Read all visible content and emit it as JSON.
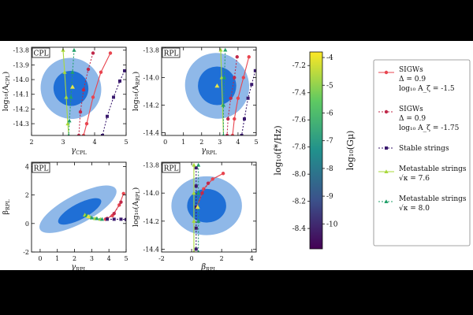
{
  "chart_data": [
    {
      "type": "scatter",
      "id": "cpl",
      "panel_label": "CPL",
      "xlabel": "γ",
      "xlabel_sub": "CPL",
      "ylabel": "log₁₀(A",
      "ylabel_sub": "CPL",
      "ylabel_end": ")",
      "xlim": [
        2,
        5
      ],
      "ylim": [
        -14.38,
        -13.78
      ],
      "xticks": [
        "2",
        "3",
        "4",
        "5"
      ],
      "yticks": [
        "-13.8",
        "-13.9",
        "-14.0",
        "-14.1",
        "-14.2",
        "-14.3"
      ],
      "contour_2sigma": {
        "center": [
          3.25,
          -14.06
        ],
        "radii": [
          0.95,
          0.21
        ],
        "angle_deg": 38
      },
      "contour_1sigma": {
        "center": [
          3.25,
          -14.06
        ],
        "radii": [
          0.55,
          0.12
        ],
        "angle_deg": 38
      },
      "marker": [
        3.3,
        -14.05
      ],
      "series": [
        {
          "kind": "sigw1",
          "points": [
            [
              4.5,
              -13.82
            ],
            [
              4.2,
              -13.95
            ],
            [
              3.95,
              -14.12
            ],
            [
              3.75,
              -14.3
            ],
            [
              3.65,
              -14.38
            ]
          ]
        },
        {
          "kind": "sigw2",
          "points": [
            [
              3.95,
              -13.82
            ],
            [
              3.8,
              -13.93
            ],
            [
              3.65,
              -14.07
            ],
            [
              3.55,
              -14.22
            ],
            [
              3.5,
              -14.38
            ]
          ]
        },
        {
          "kind": "stable",
          "points": [
            [
              4.95,
              -13.94
            ],
            [
              4.8,
              -14.01
            ],
            [
              4.6,
              -14.12
            ],
            [
              4.4,
              -14.25
            ],
            [
              4.25,
              -14.38
            ]
          ]
        },
        {
          "kind": "meta1",
          "points": [
            [
              3.0,
              -13.8
            ],
            [
              3.05,
              -13.95
            ],
            [
              3.1,
              -14.12
            ],
            [
              3.15,
              -14.3
            ],
            [
              3.18,
              -14.38
            ]
          ]
        },
        {
          "kind": "meta2",
          "points": [
            [
              3.35,
              -13.8
            ],
            [
              3.3,
              -13.95
            ],
            [
              3.25,
              -14.12
            ],
            [
              3.2,
              -14.28
            ],
            [
              3.18,
              -14.38
            ]
          ]
        }
      ]
    },
    {
      "type": "scatter",
      "id": "rpl-top",
      "panel_label": "RPL",
      "xlabel": "γ",
      "xlabel_sub": "RPL",
      "ylabel": "log₁₀(A",
      "ylabel_sub": "RPL",
      "ylabel_end": ")",
      "xlim": [
        -0.2,
        5
      ],
      "ylim": [
        -14.42,
        -13.78
      ],
      "xticks": [
        "0",
        "1",
        "2",
        "3",
        "4",
        "5"
      ],
      "yticks": [
        "-13.8",
        "-14.0",
        "-14.2",
        "-14.4"
      ],
      "contour_2sigma": {
        "center": [
          2.85,
          -14.06
        ],
        "radii": [
          1.75,
          0.24
        ],
        "angle_deg": 25
      },
      "contour_1sigma": {
        "center": [
          2.85,
          -14.06
        ],
        "radii": [
          1.05,
          0.14
        ],
        "angle_deg": 25
      },
      "marker": [
        2.85,
        -14.06
      ],
      "series": [
        {
          "kind": "sigw1",
          "points": [
            [
              4.6,
              -13.85
            ],
            [
              4.3,
              -14.0
            ],
            [
              4.0,
              -14.15
            ],
            [
              3.8,
              -14.3
            ],
            [
              3.7,
              -14.42
            ]
          ]
        },
        {
          "kind": "sigw2",
          "points": [
            [
              3.95,
              -13.85
            ],
            [
              3.8,
              -14.0
            ],
            [
              3.6,
              -14.15
            ],
            [
              3.45,
              -14.3
            ],
            [
              3.4,
              -14.42
            ]
          ]
        },
        {
          "kind": "stable",
          "points": [
            [
              4.95,
              -13.95
            ],
            [
              4.75,
              -14.05
            ],
            [
              4.55,
              -14.15
            ],
            [
              4.35,
              -14.3
            ],
            [
              4.2,
              -14.42
            ]
          ]
        },
        {
          "kind": "meta1",
          "points": [
            [
              3.05,
              -13.8
            ],
            [
              3.1,
              -14.0
            ],
            [
              3.15,
              -14.2
            ],
            [
              3.2,
              -14.42
            ]
          ]
        },
        {
          "kind": "meta2",
          "points": [
            [
              3.3,
              -13.8
            ],
            [
              3.25,
              -14.0
            ],
            [
              3.2,
              -14.2
            ],
            [
              3.2,
              -14.42
            ]
          ]
        }
      ]
    },
    {
      "type": "scatter",
      "id": "rpl-bottom-left",
      "panel_label": "RPL",
      "xlabel": "γ",
      "xlabel_sub": "RPL",
      "ylabel": "β",
      "ylabel_sub": "RPL",
      "ylabel_end": "",
      "xlim": [
        -0.5,
        5
      ],
      "ylim": [
        -2,
        4.3
      ],
      "xticks": [
        "0",
        "1",
        "2",
        "3",
        "4",
        "5"
      ],
      "yticks": [
        "4",
        "2",
        "0",
        "-2"
      ],
      "contour_2sigma": {
        "center": [
          2.2,
          1.0
        ],
        "radii": [
          2.5,
          1.0
        ],
        "angle_deg": 28
      },
      "contour_1sigma": {
        "center": [
          2.3,
          0.85
        ],
        "radii": [
          1.4,
          0.55
        ],
        "angle_deg": 28
      },
      "marker": [
        2.8,
        0.5
      ],
      "series": [
        {
          "kind": "sigw1",
          "points": [
            [
              3.8,
              0.3
            ],
            [
              4.2,
              0.55
            ],
            [
              4.6,
              1.3
            ],
            [
              4.85,
              2.1
            ]
          ]
        },
        {
          "kind": "sigw2",
          "points": [
            [
              3.9,
              0.35
            ],
            [
              4.3,
              0.7
            ],
            [
              4.7,
              1.5
            ]
          ]
        },
        {
          "kind": "stable",
          "points": [
            [
              3.9,
              0.3
            ],
            [
              4.3,
              0.3
            ],
            [
              4.7,
              0.3
            ],
            [
              5.0,
              0.28
            ]
          ]
        },
        {
          "kind": "meta1",
          "points": [
            [
              2.6,
              0.6
            ],
            [
              2.9,
              0.45
            ],
            [
              3.2,
              0.35
            ],
            [
              3.5,
              0.3
            ]
          ]
        },
        {
          "kind": "meta2",
          "points": [
            [
              2.7,
              0.55
            ],
            [
              3.0,
              0.4
            ],
            [
              3.3,
              0.35
            ],
            [
              3.6,
              0.3
            ]
          ]
        }
      ]
    },
    {
      "type": "scatter",
      "id": "rpl-bottom-right",
      "panel_label": "RPL",
      "xlabel": "β",
      "xlabel_sub": "RPL",
      "ylabel": "log₁₀(A",
      "ylabel_sub": "RPL",
      "ylabel_end": ")",
      "xlim": [
        -2,
        4.3
      ],
      "ylim": [
        -14.42,
        -13.78
      ],
      "xticks": [
        "-2",
        "0",
        "2",
        "4"
      ],
      "yticks": [
        "-13.8",
        "-14.0",
        "-14.2",
        "-14.4"
      ],
      "contour_2sigma": {
        "center": [
          1.0,
          -14.09
        ],
        "radii": [
          2.35,
          0.21
        ],
        "angle_deg": 0
      },
      "contour_1sigma": {
        "center": [
          1.0,
          -14.09
        ],
        "radii": [
          1.3,
          0.12
        ],
        "angle_deg": 0
      },
      "marker": [
        0.4,
        -14.1
      ],
      "series": [
        {
          "kind": "sigw1",
          "points": [
            [
              0.35,
              -14.1
            ],
            [
              0.8,
              -13.97
            ],
            [
              1.4,
              -13.9
            ],
            [
              2.1,
              -13.86
            ]
          ]
        },
        {
          "kind": "sigw2",
          "points": [
            [
              0.35,
              -14.1
            ],
            [
              0.7,
              -14.0
            ],
            [
              1.1,
              -13.93
            ]
          ]
        },
        {
          "kind": "stable",
          "points": [
            [
              0.3,
              -13.82
            ],
            [
              0.3,
              -13.95
            ],
            [
              0.3,
              -14.1
            ],
            [
              0.3,
              -14.25
            ],
            [
              0.3,
              -14.4
            ]
          ]
        },
        {
          "kind": "meta1",
          "points": [
            [
              0.15,
              -13.8
            ],
            [
              0.15,
              -14.0
            ],
            [
              0.15,
              -14.2
            ],
            [
              0.15,
              -14.42
            ]
          ]
        },
        {
          "kind": "meta2",
          "points": [
            [
              0.45,
              -13.8
            ],
            [
              0.45,
              -14.0
            ],
            [
              0.45,
              -14.2
            ],
            [
              0.45,
              -14.42
            ]
          ]
        }
      ]
    }
  ],
  "colorbar": {
    "left_label": "log₁₀(f*/Hz)",
    "right_label": "log₁₀(Gμ)",
    "left_ticks": [
      "-7.2",
      "-7.4",
      "-7.6",
      "-7.8",
      "-8.0",
      "-8.2",
      "-8.4"
    ],
    "left_range": [
      -8.55,
      -7.1
    ],
    "right_ticks": [
      "-4",
      "-5",
      "-6",
      "-7",
      "-8",
      "-9",
      "-10"
    ],
    "right_range": [
      -10.9,
      -3.8
    ],
    "colors": [
      "#440154",
      "#3b528b",
      "#21918c",
      "#5ec962",
      "#fde725"
    ]
  },
  "legend": {
    "entries": [
      {
        "kind": "sigw1",
        "lines": [
          "SIGWs",
          "Δ = 0.9",
          "log₁₀ A_ζ = -1.5"
        ]
      },
      {
        "kind": "sigw2",
        "lines": [
          "SIGWs",
          "Δ = 0.9",
          "log₁₀ A_ζ = -1.75"
        ]
      },
      {
        "kind": "stable",
        "lines": [
          "Stable strings"
        ]
      },
      {
        "kind": "meta1",
        "lines": [
          "Metastable strings",
          "√κ = 7.6"
        ]
      },
      {
        "kind": "meta2",
        "lines": [
          "Metastable strings",
          "√κ = 8.0"
        ]
      }
    ]
  },
  "colors": {
    "outer_contour": "#8fb8e8",
    "inner_contour": "#1f6fd6",
    "sigw1": "#e8454f",
    "sigw2": "#c0294a",
    "stable": "#3a1a6e",
    "meta1": "#a8d83a",
    "meta2": "#22a06a"
  }
}
